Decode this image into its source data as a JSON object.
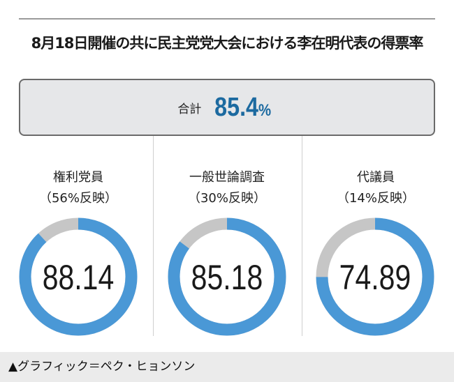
{
  "title": "8月18日開催の共に民主党党大会における李在明代表の得票率",
  "total": {
    "label": "合計",
    "value": "85.4",
    "unit": "%"
  },
  "chart_data": {
    "type": "pie",
    "title": "8月18日開催の共に民主党党大会における李在明代表の得票率",
    "max": 100,
    "series": [
      {
        "name": "権利党員",
        "weight": "（56%反映）",
        "value": 88.14,
        "label": "88.14"
      },
      {
        "name": "一般世論調査",
        "weight": "（30%反映）",
        "value": 85.18,
        "label": "85.18"
      },
      {
        "name": "代議員",
        "weight": "（14%反映）",
        "value": 74.89,
        "label": "74.89"
      }
    ],
    "colors": {
      "value": "#4a98d6",
      "rest": "#c6c6c6"
    }
  },
  "footer": "▲グラフィック＝ペク・ヒョンソン"
}
